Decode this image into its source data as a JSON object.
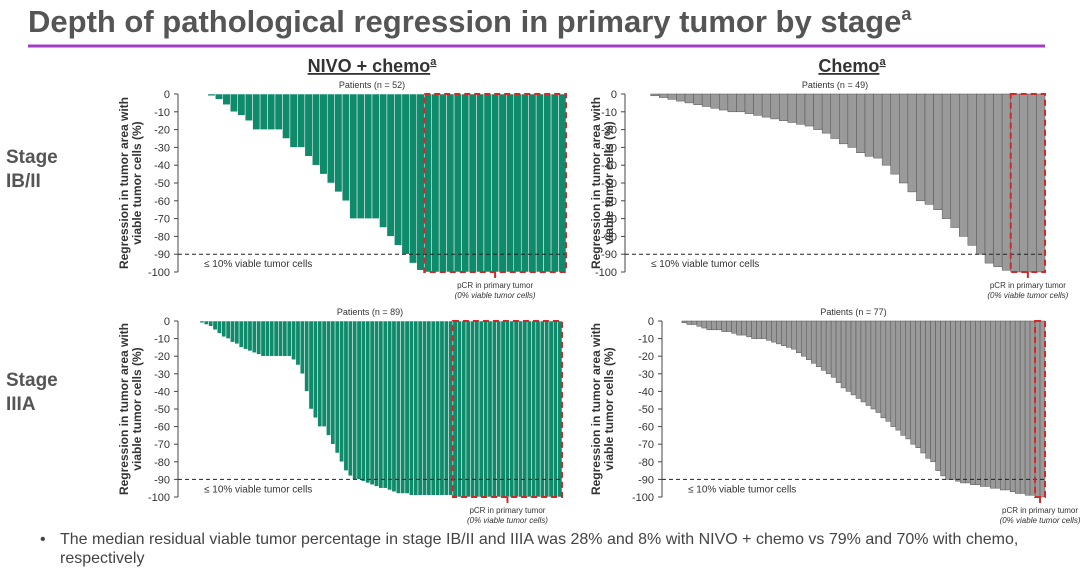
{
  "title": "Depth of pathological regression in primary tumor by stage",
  "title_sup": "a",
  "column_headers": [
    {
      "text": "NIVO + chemo",
      "sup": "a"
    },
    {
      "text": "Chemo",
      "sup": "a"
    }
  ],
  "row_labels": [
    [
      "Stage",
      "IB/II"
    ],
    [
      "Stage",
      "IIIA"
    ]
  ],
  "bullet": "The median residual viable tumor percentage in stage IB/II and IIIA was 28% and 8% with NIVO + chemo vs 79% and 70% with chemo, respectively",
  "chart_data": [
    {
      "type": "bar",
      "title": "Patients (n = 52)",
      "ylabel": [
        "Regression in tumor area with",
        "viable tumor cells (%)"
      ],
      "color": "#0f8a6b",
      "values": [
        0,
        0,
        0,
        0,
        -1,
        -3,
        -6,
        -10,
        -12,
        -15,
        -20,
        -20,
        -20,
        -20,
        -25,
        -30,
        -30,
        -35,
        -40,
        -45,
        -50,
        -55,
        -60,
        -70,
        -70,
        -70,
        -70,
        -75,
        -80,
        -85,
        -90,
        -95,
        -99,
        -100,
        -100,
        -100,
        -100,
        -100,
        -100,
        -100,
        -100,
        -100,
        -100,
        -100,
        -100,
        -100,
        -100,
        -100,
        -100,
        -100,
        -100,
        -100
      ],
      "ylim": [
        -100,
        0
      ],
      "yticks": [
        0,
        -10,
        -20,
        -30,
        -40,
        -50,
        -60,
        -70,
        -80,
        -90,
        -100
      ],
      "threshold": -90,
      "threshold_label": "≤ 10% viable tumor cells",
      "pcr_label": "pCR in primary tumor",
      "pcr_sublabel": "(0% viable tumor cells)"
    },
    {
      "type": "bar",
      "title": "Patients (n = 49)",
      "ylabel": [
        "Regression in tumor area with",
        "viable tumor cells (%)"
      ],
      "color": "#9a9a9a",
      "values": [
        0,
        0,
        0,
        -1,
        -2,
        -3,
        -4,
        -5,
        -6,
        -7,
        -8,
        -9,
        -10,
        -10,
        -11,
        -12,
        -13,
        -14,
        -15,
        -16,
        -17,
        -18,
        -20,
        -22,
        -25,
        -28,
        -30,
        -33,
        -35,
        -36,
        -40,
        -45,
        -50,
        -55,
        -60,
        -62,
        -65,
        -70,
        -75,
        -80,
        -85,
        -90,
        -95,
        -97,
        -99,
        -100,
        -100,
        -100,
        -100
      ],
      "ylim": [
        -100,
        0
      ],
      "yticks": [
        0,
        -10,
        -20,
        -30,
        -40,
        -50,
        -60,
        -70,
        -80,
        -90,
        -100
      ],
      "threshold": -90,
      "threshold_label": "≤ 10% viable tumor cells",
      "pcr_label": "pCR in primary tumor",
      "pcr_sublabel": "(0% viable tumor cells)"
    },
    {
      "type": "bar",
      "title": "Patients (n = 89)",
      "ylabel": [
        "Regression in tumor area with",
        "viable tumor cells (%)"
      ],
      "color": "#0f8a6b",
      "values": [
        0,
        0,
        0,
        0,
        0,
        -1,
        -2,
        -3,
        -5,
        -7,
        -9,
        -10,
        -12,
        -13,
        -15,
        -16,
        -17,
        -18,
        -19,
        -20,
        -20,
        -20,
        -20,
        -20,
        -20,
        -20,
        -22,
        -25,
        -30,
        -40,
        -50,
        -55,
        -60,
        -60,
        -65,
        -70,
        -75,
        -80,
        -85,
        -88,
        -90,
        -90,
        -91,
        -92,
        -93,
        -94,
        -95,
        -95,
        -96,
        -97,
        -98,
        -98,
        -98,
        -99,
        -99,
        -99,
        -99,
        -99,
        -99,
        -99,
        -99,
        -99,
        -99,
        -100,
        -100,
        -100,
        -100,
        -100,
        -100,
        -100,
        -100,
        -100,
        -100,
        -100,
        -100,
        -100,
        -100,
        -100,
        -100,
        -100,
        -100,
        -100,
        -100,
        -100,
        -100,
        -100,
        -100,
        -100
      ],
      "ylim": [
        -100,
        0
      ],
      "yticks": [
        0,
        -10,
        -20,
        -30,
        -40,
        -50,
        -60,
        -70,
        -80,
        -90,
        -100
      ],
      "threshold": -90,
      "threshold_label": "≤ 10% viable tumor cells",
      "pcr_label": "pCR in primary tumor",
      "pcr_sublabel": "(0% viable tumor cells)"
    },
    {
      "type": "bar",
      "title": "Patients (n = 77)",
      "ylabel": [
        "Regression in tumor area with",
        "viable tumor cells (%)"
      ],
      "color": "#9a9a9a",
      "values": [
        0,
        0,
        0,
        0,
        -1,
        -2,
        -2,
        -3,
        -4,
        -5,
        -5,
        -5,
        -6,
        -6,
        -7,
        -8,
        -8,
        -9,
        -10,
        -10,
        -10,
        -11,
        -12,
        -13,
        -14,
        -15,
        -16,
        -18,
        -20,
        -22,
        -24,
        -26,
        -28,
        -30,
        -32,
        -35,
        -38,
        -40,
        -42,
        -44,
        -46,
        -48,
        -50,
        -52,
        -55,
        -57,
        -60,
        -62,
        -65,
        -67,
        -70,
        -72,
        -75,
        -78,
        -80,
        -85,
        -88,
        -90,
        -90,
        -91,
        -92,
        -92,
        -93,
        -93,
        -94,
        -94,
        -95,
        -95,
        -96,
        -96,
        -97,
        -98,
        -98,
        -99,
        -99,
        -100,
        -100
      ],
      "ylim": [
        -100,
        0
      ],
      "yticks": [
        0,
        -10,
        -20,
        -30,
        -40,
        -50,
        -60,
        -70,
        -80,
        -90,
        -100
      ],
      "threshold": -90,
      "threshold_label": "≤ 10% viable tumor cells",
      "pcr_label": "pCR in primary tumor",
      "pcr_sublabel": "(0% viable tumor cells)"
    }
  ]
}
